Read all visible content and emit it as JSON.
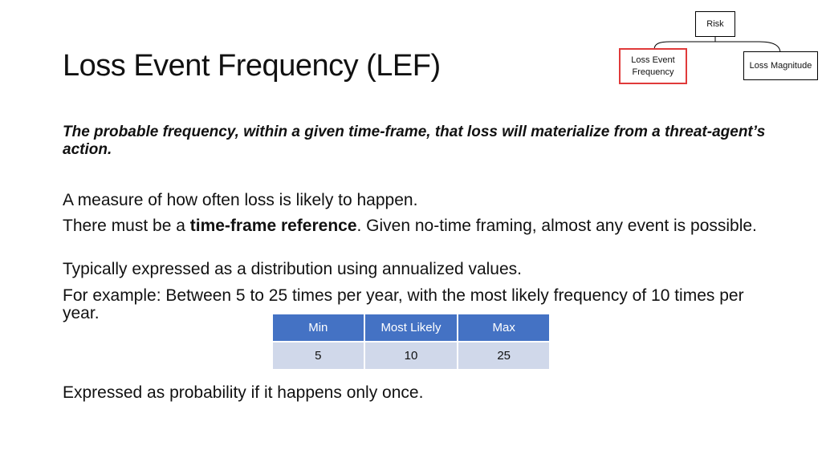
{
  "title": "Loss Event Frequency (LEF)",
  "diagram": {
    "root": "Risk",
    "left_child": [
      "Loss Event",
      "Frequency"
    ],
    "right_child": "Loss Magnitude",
    "highlight_color": "#e03a3a"
  },
  "definition": "The probable frequency, within a given time-frame, that loss will materialize from a threat-agent’s action.",
  "bullets": {
    "p1": "A measure of how often loss is likely to happen.",
    "p2_before": "There must  be a ",
    "p2_bold": "time-frame reference",
    "p2_after": ". Given no-time framing, almost any event is possible.",
    "p3": "Typically expressed as a distribution using annualized values.",
    "p4": "For example: Between 5 to 25 times per year, with the most likely frequency of 10 times per year.",
    "p5": "Expressed as probability if it happens only once."
  },
  "table": {
    "headers": [
      "Min",
      "Most Likely",
      "Max"
    ],
    "row": [
      "5",
      "10",
      "25"
    ],
    "header_color": "#4472c4",
    "cell_color": "#d0d8ea"
  }
}
